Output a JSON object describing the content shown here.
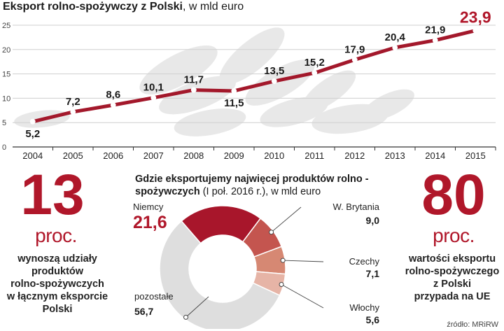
{
  "chart_data": [
    {
      "type": "line",
      "title": "Eksport rolno-spożywczy z Polski",
      "units": ", w mld euro",
      "x": [
        "2004",
        "2005",
        "2006",
        "2007",
        "2008",
        "2009",
        "2010",
        "2011",
        "2012",
        "2013",
        "2014",
        "2015"
      ],
      "values": [
        5.2,
        7.2,
        8.6,
        10.1,
        11.7,
        11.5,
        13.5,
        15.2,
        17.9,
        20.4,
        21.9,
        23.9
      ],
      "labels": [
        "5,2",
        "7,2",
        "8,6",
        "10,1",
        "11,7",
        "11,5",
        "13,5",
        "15,2",
        "17,9",
        "20,4",
        "21,9",
        "23,9"
      ],
      "yticks": [
        "0",
        "5",
        "10",
        "15",
        "20",
        "25"
      ],
      "ylim": [
        0,
        25
      ],
      "grid": true,
      "color": "#a3182b"
    },
    {
      "type": "pie",
      "title_bold": "Gdzie eksportujemy najwięcej produktów rolno -spożywczych",
      "title_regular": " (I poł. 2016 r.), w mld euro",
      "slices": [
        {
          "name": "Niemcy",
          "value": 21.6,
          "label": "21,6",
          "color": "#a8162b"
        },
        {
          "name": "W. Brytania",
          "value": 9.0,
          "label": "9,0",
          "color": "#c4554f"
        },
        {
          "name": "Czechy",
          "value": 7.1,
          "label": "7,1",
          "color": "#d68873"
        },
        {
          "name": "Włochy",
          "value": 5.6,
          "label": "5,6",
          "color": "#e6b4a6"
        },
        {
          "name": "pozostałe",
          "value": 56.7,
          "label": "56,7",
          "color": "#dedede"
        }
      ]
    }
  ],
  "stats": {
    "left": {
      "number": "13",
      "unit": "proc.",
      "text": [
        "wynoszą udziały",
        "produktów",
        "rolno-spożywczych",
        "w łącznym eksporcie",
        "Polski"
      ]
    },
    "right": {
      "number": "80",
      "unit": "proc.",
      "text": [
        "wartości eksportu",
        "rolno-spożywczego",
        "z Polski",
        "przypada na UE"
      ]
    }
  },
  "source": "źródło: MRiRW",
  "colors": {
    "accent": "#b0172a",
    "line": "#a3182b",
    "grid": "#cfcfcf"
  }
}
